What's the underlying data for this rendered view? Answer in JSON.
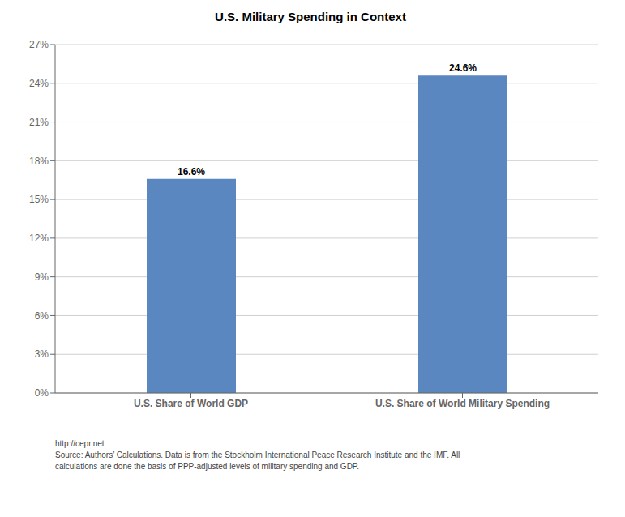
{
  "chart_data": {
    "type": "bar",
    "title": "U.S. Military Spending in Context",
    "categories": [
      "U.S. Share of World GDP",
      "U.S. Share of World Military Spending"
    ],
    "values": [
      16.6,
      24.6
    ],
    "value_labels": [
      "16.6%",
      "24.6%"
    ],
    "color": "#5b87c0",
    "ylim": [
      0,
      27
    ],
    "yticks": [
      {
        "value": 0,
        "label": "0%"
      },
      {
        "value": 3,
        "label": "3%"
      },
      {
        "value": 6,
        "label": "6%"
      },
      {
        "value": 9,
        "label": "9%"
      },
      {
        "value": 12,
        "label": "12%"
      },
      {
        "value": 15,
        "label": "15%"
      },
      {
        "value": 18,
        "label": "18%"
      },
      {
        "value": 21,
        "label": "21%"
      },
      {
        "value": 24,
        "label": "24%"
      },
      {
        "value": 27,
        "label": "27%"
      }
    ],
    "grid": true,
    "data_labels": true,
    "annotations": [
      "http://cepr.net",
      "Source: Authors’ Calculations. Data is from the Stockholm International Peace Research Institute and the IMF. All",
      "calculations are done the basis of PPP-adjusted levels of military spending and GDP."
    ]
  }
}
